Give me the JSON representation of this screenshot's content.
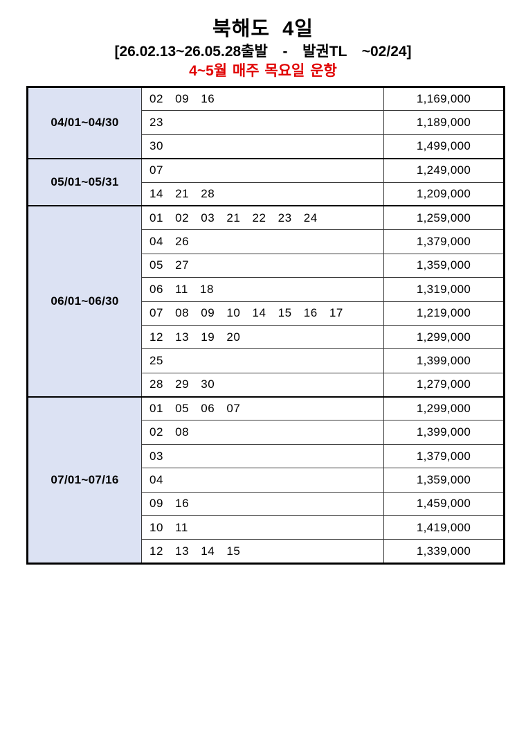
{
  "header": {
    "title": "북해도  4일",
    "subtitle": "[26.02.13~26.05.28출발  -  발권TL  ~02/24]",
    "notice": "4~5월 매주 목요일 운항",
    "notice_color": "#e00000",
    "title_color": "#000000"
  },
  "table": {
    "period_cell_bg": "#dce2f3",
    "outer_border_color": "#000000",
    "inner_border_color": "#3a3a3a",
    "columns": [
      "period",
      "departure-days",
      "price"
    ],
    "groups": [
      {
        "period": "04/01~04/30",
        "rows": [
          {
            "days": "02 09 16",
            "price": "1,169,000"
          },
          {
            "days": "23",
            "price": "1,189,000"
          },
          {
            "days": "30",
            "price": "1,499,000"
          }
        ]
      },
      {
        "period": "05/01~05/31",
        "rows": [
          {
            "days": "07",
            "price": "1,249,000"
          },
          {
            "days": "14 21 28",
            "price": "1,209,000"
          }
        ]
      },
      {
        "period": "06/01~06/30",
        "rows": [
          {
            "days": "01 02 03 21 22 23 24",
            "price": "1,259,000"
          },
          {
            "days": "04 26",
            "price": "1,379,000"
          },
          {
            "days": "05 27",
            "price": "1,359,000"
          },
          {
            "days": "06 11 18",
            "price": "1,319,000"
          },
          {
            "days": "07 08 09 10 14 15 16 17",
            "price": "1,219,000"
          },
          {
            "days": "12 13 19 20",
            "price": "1,299,000"
          },
          {
            "days": "25",
            "price": "1,399,000"
          },
          {
            "days": "28 29 30",
            "price": "1,279,000"
          }
        ]
      },
      {
        "period": "07/01~07/16",
        "rows": [
          {
            "days": "01 05 06 07",
            "price": "1,299,000"
          },
          {
            "days": "02 08",
            "price": "1,399,000"
          },
          {
            "days": "03",
            "price": "1,379,000"
          },
          {
            "days": "04",
            "price": "1,359,000"
          },
          {
            "days": "09 16",
            "price": "1,459,000"
          },
          {
            "days": "10 11",
            "price": "1,419,000"
          },
          {
            "days": "12 13 14 15",
            "price": "1,339,000"
          }
        ]
      }
    ]
  }
}
